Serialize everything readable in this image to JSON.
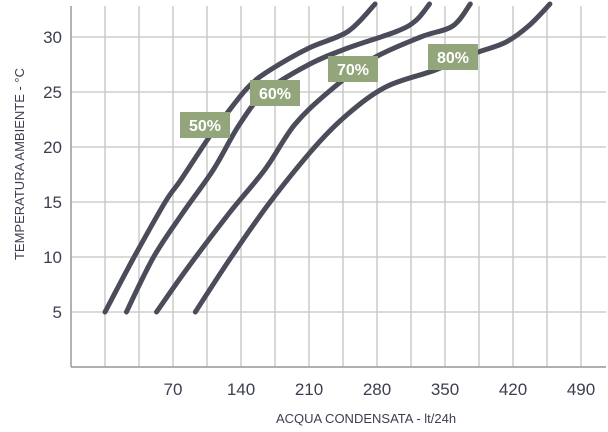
{
  "chart_data": {
    "type": "line",
    "xlabel": "ACQUA CONDENSATA - lt/24h",
    "ylabel": "TEMPERATURA AMBIENTE - °C",
    "xlim": [
      0,
      560
    ],
    "ylim": [
      0,
      33
    ],
    "x_ticks": [
      70,
      140,
      210,
      280,
      350,
      420,
      490
    ],
    "y_ticks": [
      5,
      10,
      15,
      20,
      25,
      30
    ],
    "grid": true,
    "colors": {
      "line": "#4b4c5a",
      "grid": "#c4c4c4",
      "tag_bg": "#93a57a",
      "tag_text": "#ffffff",
      "text": "#3c3f4f"
    },
    "series": [
      {
        "name": "50%",
        "points": [
          [
            0,
            5
          ],
          [
            30,
            10
          ],
          [
            62,
            15
          ],
          [
            78,
            17
          ],
          [
            108,
            21
          ],
          [
            125,
            23
          ],
          [
            148,
            25.5
          ],
          [
            170,
            27
          ],
          [
            210,
            29
          ],
          [
            250,
            30.5
          ],
          [
            278,
            33
          ]
        ]
      },
      {
        "name": "60%",
        "points": [
          [
            22,
            5
          ],
          [
            50,
            10
          ],
          [
            80,
            14
          ],
          [
            112,
            18
          ],
          [
            138,
            22
          ],
          [
            165,
            25
          ],
          [
            210,
            27.5
          ],
          [
            250,
            29
          ],
          [
            300,
            30.5
          ],
          [
            320,
            31.5
          ],
          [
            334,
            33
          ]
        ]
      },
      {
        "name": "70%",
        "points": [
          [
            53,
            5
          ],
          [
            85,
            9
          ],
          [
            128,
            14
          ],
          [
            165,
            18
          ],
          [
            195,
            22
          ],
          [
            230,
            25
          ],
          [
            275,
            28
          ],
          [
            325,
            30
          ],
          [
            358,
            31
          ],
          [
            376,
            33
          ]
        ]
      },
      {
        "name": "80%",
        "points": [
          [
            93,
            5
          ],
          [
            130,
            10
          ],
          [
            170,
            15
          ],
          [
            216,
            20
          ],
          [
            250,
            23
          ],
          [
            290,
            25.5
          ],
          [
            340,
            27
          ],
          [
            380,
            28.5
          ],
          [
            412,
            29.5
          ],
          [
            436,
            31
          ],
          [
            458,
            33
          ]
        ]
      }
    ]
  }
}
